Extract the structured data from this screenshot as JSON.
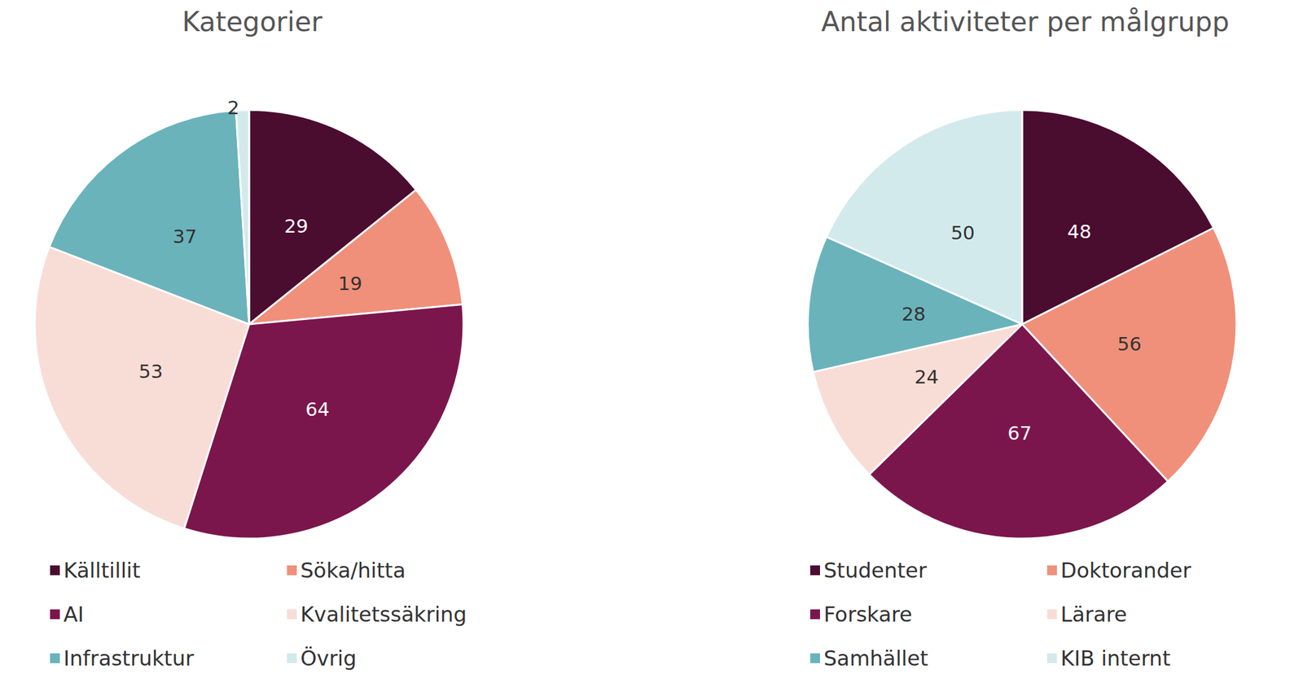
{
  "chart_data": [
    {
      "type": "pie",
      "title": "Kategorier",
      "categories": [
        "Källtillit",
        "Söka/hitta",
        "AI",
        "Kvalitetssäkring",
        "Infrastruktur",
        "Övrig"
      ],
      "values": [
        29,
        19,
        64,
        53,
        37,
        2
      ],
      "colors": [
        "#4a0c2f",
        "#f0907a",
        "#7b164c",
        "#f8ddd6",
        "#6ab3bb",
        "#d3eaec"
      ],
      "data_labels": true,
      "legend": "bottom"
    },
    {
      "type": "pie",
      "title": "Antal aktiviteter per målgrupp",
      "categories": [
        "Studenter",
        "Doktorander",
        "Forskare",
        "Lärare",
        "Samhället",
        "KIB internt"
      ],
      "values": [
        48,
        56,
        67,
        24,
        28,
        50
      ],
      "colors": [
        "#4a0c2f",
        "#f0907a",
        "#7b164c",
        "#f8ddd6",
        "#6ab3bb",
        "#d3eaec"
      ],
      "data_labels": true,
      "legend": "bottom"
    }
  ]
}
